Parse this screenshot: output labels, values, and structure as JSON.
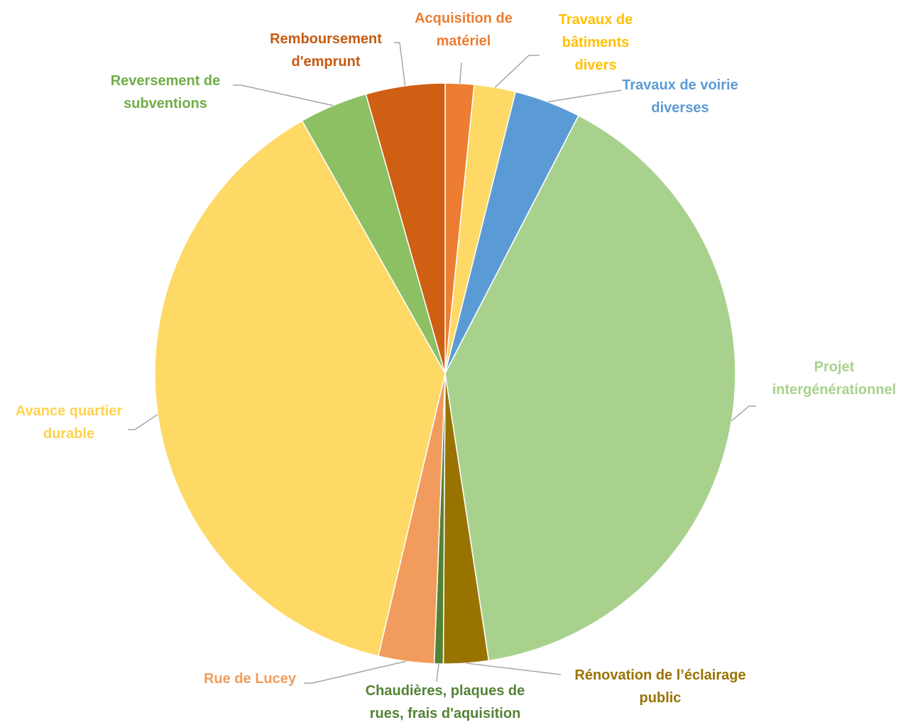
{
  "chart_data": {
    "type": "pie",
    "categories": [
      "Acquisition de matériel",
      "Travaux de bâtiments divers",
      "Travaux de voirie diverses",
      "Projet intergénérationnel",
      "Rénovation de l’éclairage public",
      "Chaudières, plaques de rues, frais d'aquisition",
      "Rue de Lucey",
      "Avance quartier durable",
      "Reversement de subventions",
      "Remboursement d'emprunt"
    ],
    "values": [
      1.6,
      2.3,
      3.7,
      40.0,
      2.5,
      0.5,
      3.1,
      38.1,
      3.8,
      4.4
    ],
    "colors": [
      "#ed7d31",
      "#ffd966",
      "#5b9bd5",
      "#a9d18e",
      "#997300",
      "#548235",
      "#f19c5c",
      "#ffd966",
      "#8cc063",
      "#cf5f12"
    ],
    "label_colors": [
      "#ed7d31",
      "#ffc000",
      "#5b9bd5",
      "#a9d18e",
      "#997300",
      "#548235",
      "#f19c5c",
      "#ffd24d",
      "#70ad47",
      "#c55a11"
    ]
  }
}
